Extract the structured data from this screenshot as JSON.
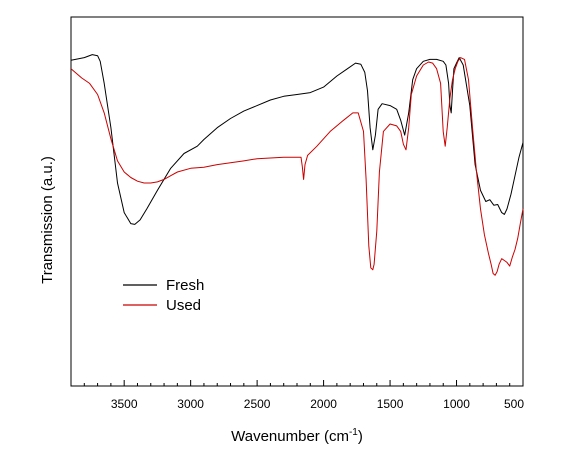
{
  "chart_data": {
    "type": "line",
    "title": "",
    "xlabel": "Wavenumber (cm",
    "xlabel_sup": "-1",
    "xlabel_close": ")",
    "ylabel": "Transmission (a.u.)",
    "xlim": [
      3900,
      500
    ],
    "x_reversed": true,
    "ylim": [
      0,
      1
    ],
    "y_ticks_shown": false,
    "grid": false,
    "legend_position": "lower-left",
    "x_ticks": [
      {
        "value": 3500,
        "label": "3500"
      },
      {
        "value": 3000,
        "label": "3000"
      },
      {
        "value": 2500,
        "label": "2500"
      },
      {
        "value": 2000,
        "label": "2000"
      },
      {
        "value": 1500,
        "label": "1500"
      },
      {
        "value": 1000,
        "label": "1000"
      },
      {
        "value": 500,
        "label": "500"
      }
    ],
    "series": [
      {
        "name": "Fresh",
        "color": "#000000",
        "points": [
          [
            3900,
            0.883
          ],
          [
            3800,
            0.89
          ],
          [
            3740,
            0.898
          ],
          [
            3700,
            0.895
          ],
          [
            3680,
            0.88
          ],
          [
            3650,
            0.82
          ],
          [
            3600,
            0.7
          ],
          [
            3550,
            0.55
          ],
          [
            3500,
            0.47
          ],
          [
            3450,
            0.44
          ],
          [
            3420,
            0.438
          ],
          [
            3380,
            0.45
          ],
          [
            3330,
            0.48
          ],
          [
            3250,
            0.53
          ],
          [
            3150,
            0.59
          ],
          [
            3050,
            0.63
          ],
          [
            2950,
            0.65
          ],
          [
            2900,
            0.668
          ],
          [
            2800,
            0.7
          ],
          [
            2700,
            0.725
          ],
          [
            2600,
            0.745
          ],
          [
            2500,
            0.76
          ],
          [
            2400,
            0.775
          ],
          [
            2300,
            0.785
          ],
          [
            2200,
            0.79
          ],
          [
            2100,
            0.795
          ],
          [
            2000,
            0.81
          ],
          [
            1900,
            0.84
          ],
          [
            1820,
            0.86
          ],
          [
            1760,
            0.875
          ],
          [
            1720,
            0.872
          ],
          [
            1690,
            0.85
          ],
          [
            1670,
            0.8
          ],
          [
            1650,
            0.7
          ],
          [
            1630,
            0.64
          ],
          [
            1610,
            0.68
          ],
          [
            1590,
            0.75
          ],
          [
            1560,
            0.765
          ],
          [
            1500,
            0.76
          ],
          [
            1450,
            0.75
          ],
          [
            1420,
            0.72
          ],
          [
            1390,
            0.68
          ],
          [
            1360,
            0.74
          ],
          [
            1330,
            0.83
          ],
          [
            1300,
            0.86
          ],
          [
            1250,
            0.88
          ],
          [
            1200,
            0.885
          ],
          [
            1150,
            0.885
          ],
          [
            1100,
            0.88
          ],
          [
            1080,
            0.87
          ],
          [
            1060,
            0.82
          ],
          [
            1050,
            0.76
          ],
          [
            1040,
            0.74
          ],
          [
            1030,
            0.8
          ],
          [
            1020,
            0.86
          ],
          [
            1000,
            0.875
          ],
          [
            980,
            0.89
          ],
          [
            950,
            0.87
          ],
          [
            900,
            0.76
          ],
          [
            860,
            0.6
          ],
          [
            820,
            0.53
          ],
          [
            780,
            0.5
          ],
          [
            750,
            0.505
          ],
          [
            720,
            0.49
          ],
          [
            690,
            0.492
          ],
          [
            660,
            0.47
          ],
          [
            640,
            0.465
          ],
          [
            620,
            0.48
          ],
          [
            590,
            0.52
          ],
          [
            560,
            0.57
          ],
          [
            530,
            0.62
          ],
          [
            500,
            0.66
          ]
        ]
      },
      {
        "name": "Used",
        "color": "#cc0000",
        "points": [
          [
            3900,
            0.86
          ],
          [
            3820,
            0.835
          ],
          [
            3760,
            0.82
          ],
          [
            3700,
            0.79
          ],
          [
            3650,
            0.74
          ],
          [
            3600,
            0.67
          ],
          [
            3550,
            0.61
          ],
          [
            3500,
            0.58
          ],
          [
            3450,
            0.565
          ],
          [
            3400,
            0.555
          ],
          [
            3350,
            0.55
          ],
          [
            3300,
            0.55
          ],
          [
            3250,
            0.553
          ],
          [
            3200,
            0.56
          ],
          [
            3150,
            0.57
          ],
          [
            3100,
            0.58
          ],
          [
            3000,
            0.59
          ],
          [
            2900,
            0.593
          ],
          [
            2800,
            0.6
          ],
          [
            2700,
            0.605
          ],
          [
            2600,
            0.61
          ],
          [
            2500,
            0.616
          ],
          [
            2400,
            0.618
          ],
          [
            2300,
            0.62
          ],
          [
            2200,
            0.62
          ],
          [
            2170,
            0.62
          ],
          [
            2160,
            0.595
          ],
          [
            2150,
            0.56
          ],
          [
            2140,
            0.6
          ],
          [
            2120,
            0.625
          ],
          [
            2050,
            0.65
          ],
          [
            1950,
            0.69
          ],
          [
            1850,
            0.72
          ],
          [
            1780,
            0.74
          ],
          [
            1740,
            0.74
          ],
          [
            1700,
            0.69
          ],
          [
            1680,
            0.56
          ],
          [
            1660,
            0.38
          ],
          [
            1645,
            0.32
          ],
          [
            1630,
            0.315
          ],
          [
            1620,
            0.33
          ],
          [
            1600,
            0.42
          ],
          [
            1580,
            0.58
          ],
          [
            1550,
            0.69
          ],
          [
            1500,
            0.71
          ],
          [
            1450,
            0.705
          ],
          [
            1420,
            0.69
          ],
          [
            1400,
            0.655
          ],
          [
            1380,
            0.64
          ],
          [
            1360,
            0.7
          ],
          [
            1340,
            0.79
          ],
          [
            1300,
            0.84
          ],
          [
            1250,
            0.87
          ],
          [
            1210,
            0.878
          ],
          [
            1180,
            0.875
          ],
          [
            1150,
            0.86
          ],
          [
            1120,
            0.82
          ],
          [
            1100,
            0.69
          ],
          [
            1085,
            0.65
          ],
          [
            1070,
            0.7
          ],
          [
            1050,
            0.78
          ],
          [
            1030,
            0.83
          ],
          [
            1010,
            0.86
          ],
          [
            990,
            0.88
          ],
          [
            970,
            0.89
          ],
          [
            940,
            0.885
          ],
          [
            910,
            0.83
          ],
          [
            880,
            0.7
          ],
          [
            850,
            0.58
          ],
          [
            820,
            0.48
          ],
          [
            790,
            0.41
          ],
          [
            760,
            0.36
          ],
          [
            740,
            0.33
          ],
          [
            725,
            0.305
          ],
          [
            710,
            0.3
          ],
          [
            695,
            0.31
          ],
          [
            680,
            0.33
          ],
          [
            660,
            0.345
          ],
          [
            640,
            0.34
          ],
          [
            620,
            0.335
          ],
          [
            600,
            0.325
          ],
          [
            580,
            0.35
          ],
          [
            560,
            0.37
          ],
          [
            540,
            0.4
          ],
          [
            520,
            0.44
          ],
          [
            500,
            0.48
          ]
        ]
      }
    ]
  }
}
